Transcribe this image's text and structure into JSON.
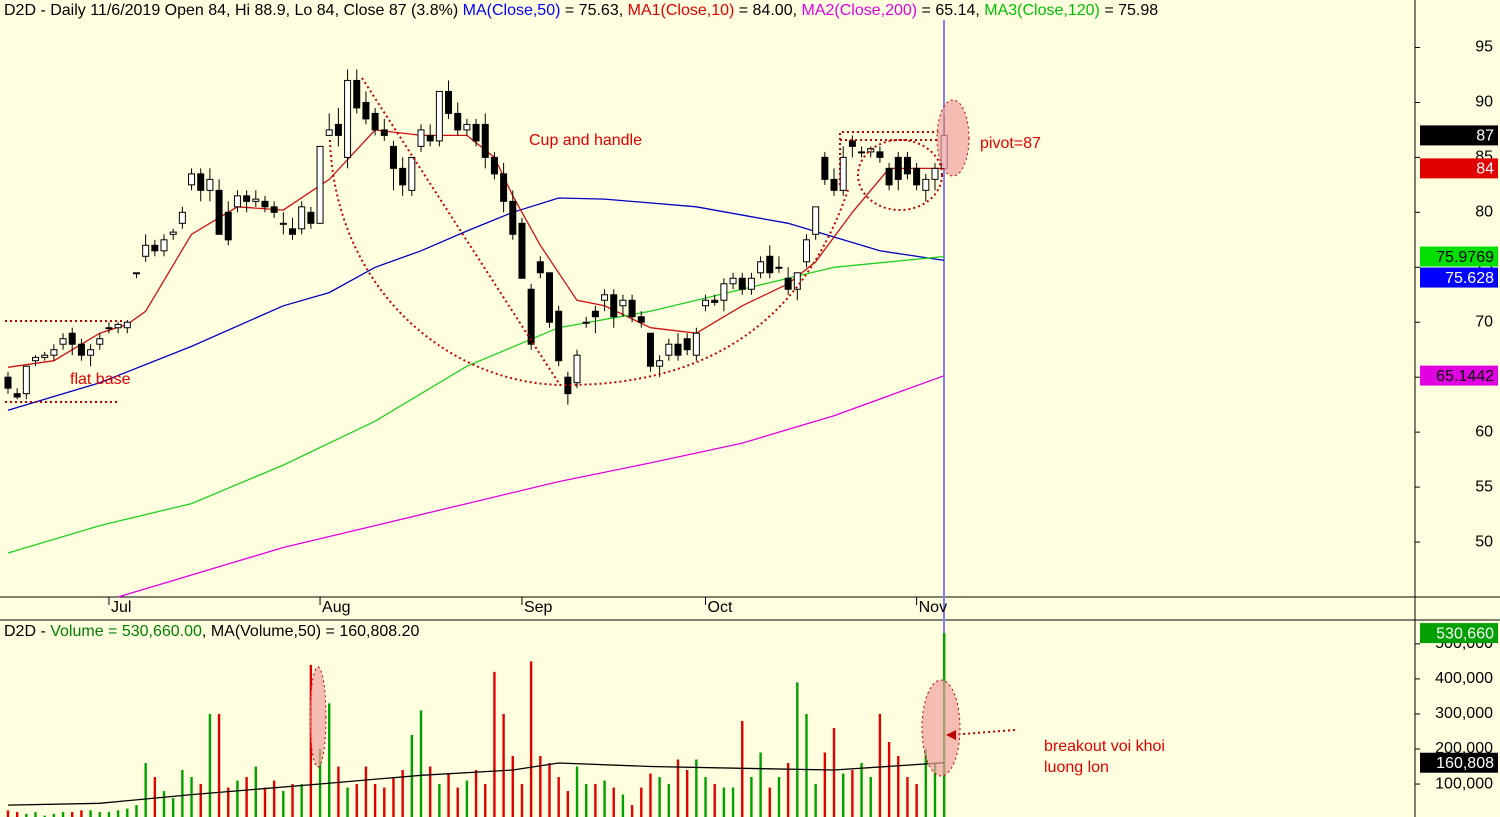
{
  "chart_data": [
    {
      "type": "candlestick",
      "title_segments": [
        {
          "text": "D2D - Daily 11/6/2019 Open 84, Hi 88.9, Lo 84, Close 87 (3.8%) ",
          "color": "#000000"
        },
        {
          "text": "MA(Close,50)",
          "color": "#0000ff"
        },
        {
          "text": " = 75.63, ",
          "color": "#000000"
        },
        {
          "text": "MA1(Close,10)",
          "color": "#e00000"
        },
        {
          "text": " = 84.00, ",
          "color": "#000000"
        },
        {
          "text": "MA2(Close,200)",
          "color": "#e000e0"
        },
        {
          "text": " = 65.14, ",
          "color": "#000000"
        },
        {
          "text": "MA3(Close,120)",
          "color": "#00c000"
        },
        {
          "text": " = 75.98",
          "color": "#000000"
        }
      ],
      "candles": [
        [
          65,
          65.5,
          63.5,
          64
        ],
        [
          63.5,
          64,
          63,
          63.2
        ],
        [
          63.5,
          66,
          63,
          66
        ],
        [
          66.5,
          67,
          66,
          66.8
        ],
        [
          66.8,
          67.3,
          66.5,
          67
        ],
        [
          67,
          68,
          66.5,
          67.5
        ],
        [
          68,
          69,
          67.5,
          68.5
        ],
        [
          69,
          69.5,
          67,
          68
        ],
        [
          68,
          68.5,
          66.5,
          67
        ],
        [
          67,
          68,
          66,
          67.5
        ],
        [
          68,
          69,
          67.5,
          68.5
        ],
        [
          69.5,
          70,
          69,
          69.5
        ],
        [
          69.5,
          70,
          69,
          69.8
        ],
        [
          69.5,
          70.2,
          69,
          70
        ],
        [
          74.5,
          74.5,
          74,
          74.5
        ],
        [
          76,
          78,
          75.5,
          77
        ],
        [
          77,
          77.5,
          76,
          76.5
        ],
        [
          76.5,
          78,
          76,
          77.5
        ],
        [
          78,
          78.5,
          77.5,
          78.2
        ],
        [
          79,
          80.5,
          78.5,
          80
        ],
        [
          82.5,
          84,
          82,
          83.5
        ],
        [
          83.5,
          84,
          81,
          82
        ],
        [
          82,
          84,
          81,
          83
        ],
        [
          82,
          83,
          78,
          78
        ],
        [
          80,
          81,
          77,
          77.5
        ],
        [
          80.5,
          82,
          80,
          81.5
        ],
        [
          81.5,
          82,
          80,
          81
        ],
        [
          81,
          82,
          80.5,
          81.2
        ],
        [
          81,
          81.5,
          80,
          80.5
        ],
        [
          80.5,
          81,
          79.5,
          80
        ],
        [
          79,
          80,
          78,
          79
        ],
        [
          78.5,
          79.5,
          77.5,
          78
        ],
        [
          78.5,
          81,
          78,
          80.5
        ],
        [
          80,
          80.5,
          78.5,
          79
        ],
        [
          79,
          86,
          79,
          86
        ],
        [
          87,
          89,
          87,
          87.5
        ],
        [
          88,
          89.5,
          86,
          87
        ],
        [
          85,
          93,
          84,
          92
        ],
        [
          92,
          93,
          89,
          89.5
        ],
        [
          90,
          91,
          88,
          88.5
        ],
        [
          89,
          89.5,
          87,
          87.5
        ],
        [
          87.5,
          88.5,
          86.5,
          87
        ],
        [
          86,
          86.5,
          82,
          84
        ],
        [
          84,
          85,
          81.5,
          82.5
        ],
        [
          82,
          85,
          81.5,
          85
        ],
        [
          86,
          88,
          85.5,
          87.5
        ],
        [
          87,
          88,
          86,
          86.5
        ],
        [
          86.5,
          91,
          86,
          91
        ],
        [
          91,
          92,
          88.5,
          89
        ],
        [
          89,
          90,
          87,
          87.5
        ],
        [
          87.5,
          88.5,
          87,
          88
        ],
        [
          88,
          88.5,
          86,
          86.5
        ],
        [
          88,
          89,
          84,
          85
        ],
        [
          85,
          85.5,
          83,
          83.5
        ],
        [
          83.5,
          84.5,
          80,
          81
        ],
        [
          81,
          82,
          77.5,
          78
        ],
        [
          79,
          79.5,
          74,
          74
        ],
        [
          73,
          73.5,
          67.5,
          68
        ],
        [
          75.5,
          76,
          74,
          74.5
        ],
        [
          74.5,
          74.5,
          69.5,
          70
        ],
        [
          71,
          71.5,
          66,
          66.5
        ],
        [
          65,
          65.5,
          62.5,
          63.5
        ],
        [
          64.5,
          67.5,
          64,
          67
        ],
        [
          70,
          70.5,
          69.5,
          70
        ],
        [
          71,
          71.5,
          69,
          70.5
        ],
        [
          72,
          73,
          71,
          72.5
        ],
        [
          72.5,
          73,
          69.5,
          70.5
        ],
        [
          71.5,
          72.5,
          70.5,
          72
        ],
        [
          72,
          72.5,
          70,
          70.5
        ],
        [
          70.5,
          71,
          69.5,
          70
        ],
        [
          69,
          69,
          65.5,
          66
        ],
        [
          66,
          67,
          65,
          66.5
        ],
        [
          67,
          68.5,
          66.5,
          68
        ],
        [
          68,
          69,
          66.5,
          67
        ],
        [
          68.5,
          69,
          67,
          67.5
        ],
        [
          67,
          69.5,
          66.5,
          69
        ],
        [
          71.5,
          72.5,
          71,
          72
        ],
        [
          72,
          72.5,
          71.5,
          71.8
        ],
        [
          72,
          74,
          71,
          73.5
        ],
        [
          73.5,
          74.5,
          73,
          74
        ],
        [
          74,
          74.5,
          72.5,
          73
        ],
        [
          73,
          74.5,
          72.5,
          74
        ],
        [
          74.5,
          76,
          74,
          75.5
        ],
        [
          76,
          77,
          74,
          74.5
        ],
        [
          75,
          76,
          74.5,
          75
        ],
        [
          74,
          75,
          72.5,
          73
        ],
        [
          73,
          74.5,
          72,
          74.5
        ],
        [
          75.5,
          78,
          75,
          77.5
        ],
        [
          78,
          80.5,
          77.5,
          80.5
        ],
        [
          85,
          85.5,
          82.5,
          83
        ],
        [
          83,
          84,
          81.5,
          82
        ],
        [
          82,
          86,
          81.5,
          85
        ],
        [
          86.5,
          87,
          85,
          86
        ],
        [
          85.5,
          86,
          85,
          85.5
        ],
        [
          85.5,
          86,
          85,
          85.8
        ],
        [
          85.5,
          86,
          84.5,
          85
        ],
        [
          84,
          84.5,
          82,
          82.5
        ],
        [
          85,
          85.5,
          82,
          83
        ],
        [
          85,
          85.5,
          83,
          83.5
        ],
        [
          84,
          84.5,
          82,
          82.5
        ],
        [
          82,
          83.5,
          81,
          83
        ],
        [
          83,
          84.5,
          82,
          84
        ],
        [
          84,
          88.9,
          84,
          87
        ]
      ],
      "up_color": "#ffffff",
      "down_color": "#000000",
      "lines": [
        {
          "color": "#0000c0",
          "x": [
            0,
            10,
            20,
            30,
            35,
            40,
            45,
            50,
            55,
            60,
            65,
            75,
            85,
            95,
            102
          ],
          "values": [
            62,
            64.5,
            67.8,
            71.5,
            72.7,
            75,
            76.5,
            78.3,
            80,
            81.3,
            81.2,
            80.5,
            79,
            76.5,
            75.63
          ]
        },
        {
          "color": "#d01010",
          "x": [
            0,
            5,
            10,
            13,
            15,
            20,
            25,
            30,
            35,
            40,
            45,
            50,
            53,
            55,
            58,
            62,
            65,
            70,
            75,
            80,
            85,
            88,
            92,
            96,
            100,
            102
          ],
          "values": [
            65.9,
            66.5,
            69,
            69.8,
            71,
            78,
            80.5,
            80.2,
            83,
            87.5,
            87,
            87,
            85,
            81.5,
            77,
            72,
            71.5,
            69.5,
            69,
            71.5,
            73.5,
            75.5,
            80,
            84,
            84,
            84
          ]
        },
        {
          "color": "#20d020",
          "x": [
            0,
            10,
            20,
            30,
            40,
            50,
            60,
            70,
            80,
            90,
            102
          ],
          "values": [
            49,
            51.5,
            53.5,
            57,
            61,
            66,
            69.5,
            71,
            73,
            75,
            75.98
          ]
        },
        {
          "color": "#e000e0",
          "x": [
            12,
            20,
            30,
            40,
            50,
            60,
            70,
            80,
            90,
            102
          ],
          "values": [
            45,
            47,
            49.5,
            51.5,
            53.5,
            55.5,
            57.2,
            59,
            61.5,
            65.14
          ]
        }
      ],
      "xlim": [
        -0.87,
        153.3
      ],
      "xticks": [
        {
          "value": 11,
          "label": "Jul"
        },
        {
          "value": 34,
          "label": "Aug"
        },
        {
          "value": 56,
          "label": "Sep"
        },
        {
          "value": 76,
          "label": "Oct"
        },
        {
          "value": 99,
          "label": "Nov"
        }
      ],
      "ylim": [
        45,
        97.5
      ],
      "yticks": [
        50,
        55,
        60,
        65,
        70,
        75,
        80,
        85,
        90,
        95
      ],
      "last_labels": [
        {
          "value": 87,
          "label": "87",
          "bg": "#000000",
          "fg": "#ffffff"
        },
        {
          "value": 84,
          "label": "84",
          "bg": "#e00000",
          "fg": "#ffffff"
        },
        {
          "value": 75.9769,
          "label": "75.9769",
          "bg": "#00e000",
          "fg": "#000000"
        },
        {
          "value": 75.628,
          "label": "75.628",
          "bg": "#0000ff",
          "fg": "#ffffff"
        },
        {
          "value": 65.1442,
          "label": "65.1442",
          "bg": "#e000e0",
          "fg": "#000000"
        }
      ],
      "annotations": [
        "flat base",
        "Cup and handle",
        "pivot=87"
      ]
    },
    {
      "type": "bar",
      "title_segments": [
        {
          "text": "D2D - ",
          "color": "#000000"
        },
        {
          "text": "Volume = 530,660.00",
          "color": "#008000"
        },
        {
          "text": ", MA(Volume,50) = 160,808.20",
          "color": "#000000"
        }
      ],
      "values": [
        25000,
        20000,
        15000,
        20000,
        10000,
        15000,
        20000,
        20000,
        25000,
        25000,
        20000,
        20000,
        25000,
        30000,
        40000,
        160000,
        120000,
        80000,
        60000,
        140000,
        120000,
        100000,
        300000,
        300000,
        90000,
        110000,
        120000,
        150000,
        90000,
        110000,
        80000,
        100000,
        100000,
        440000,
        200000,
        330000,
        150000,
        90000,
        100000,
        150000,
        100000,
        90000,
        120000,
        140000,
        240000,
        310000,
        150000,
        100000,
        130000,
        90000,
        110000,
        140000,
        100000,
        420000,
        300000,
        180000,
        100000,
        450000,
        180000,
        160000,
        120000,
        80000,
        150000,
        100000,
        100000,
        110000,
        90000,
        70000,
        40000,
        90000,
        130000,
        120000,
        100000,
        170000,
        140000,
        170000,
        120000,
        100000,
        90000,
        90000,
        280000,
        120000,
        190000,
        90000,
        120000,
        160000,
        390000,
        300000,
        100000,
        190000,
        260000,
        130000,
        140000,
        160000,
        120000,
        300000,
        220000,
        180000,
        120000,
        100000,
        200000,
        160000,
        530660
      ],
      "up_color": "#00a000",
      "down_color": "#e00000",
      "ma_line": {
        "color": "#000000",
        "x": [
          0,
          10,
          20,
          34,
          45,
          55,
          60,
          70,
          80,
          90,
          102
        ],
        "values": [
          40000,
          45000,
          70000,
          100000,
          125000,
          140000,
          160000,
          150000,
          145000,
          140000,
          160808
        ]
      },
      "ylim": [
        6000,
        568000
      ],
      "yticks": [
        {
          "value": 100000,
          "label": "100,000"
        },
        {
          "value": 200000,
          "label": "200,000"
        },
        {
          "value": 300000,
          "label": "300,000"
        },
        {
          "value": 400000,
          "label": "400,000"
        },
        {
          "value": 500000,
          "label": "500,000"
        }
      ],
      "last_labels": [
        {
          "value": 530660,
          "label": "530,660",
          "bg": "#00a000",
          "fg": "#ffffff"
        },
        {
          "value": 160808,
          "label": "160,808",
          "bg": "#000000",
          "fg": "#ffffff"
        }
      ],
      "annotations": [
        "breakout voi khoi",
        "luong lon"
      ]
    }
  ]
}
